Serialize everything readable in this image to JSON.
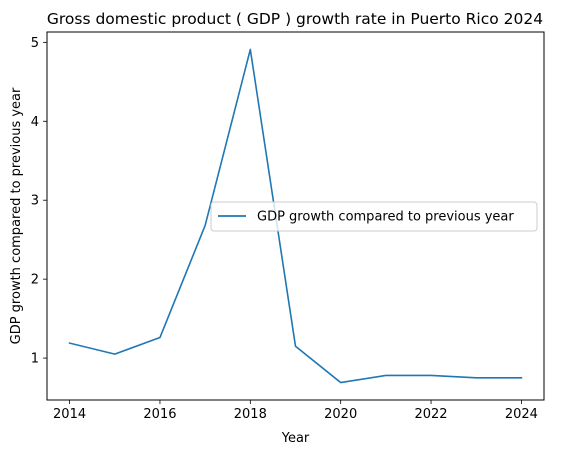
{
  "chart_data": {
    "type": "line",
    "title": "Gross domestic product ( GDP ) growth rate in Puerto Rico 2024",
    "xlabel": "Year",
    "ylabel": "GDP growth compared to previous year",
    "x": [
      2014,
      2015,
      2016,
      2017,
      2018,
      2019,
      2020,
      2021,
      2022,
      2023,
      2024
    ],
    "series": [
      {
        "name": "GDP growth compared to previous year",
        "values": [
          1.19,
          1.05,
          1.26,
          2.68,
          4.91,
          1.15,
          0.69,
          0.78,
          0.78,
          0.75,
          0.75
        ],
        "color": "#1f77b4"
      }
    ],
    "xticks": [
      2014,
      2016,
      2018,
      2020,
      2022,
      2024
    ],
    "yticks": [
      1,
      2,
      3,
      4,
      5
    ],
    "xlim": [
      2013.5,
      2024.5
    ],
    "ylim": [
      0.469,
      5.131
    ],
    "grid": false,
    "legend_position": "center-right"
  }
}
